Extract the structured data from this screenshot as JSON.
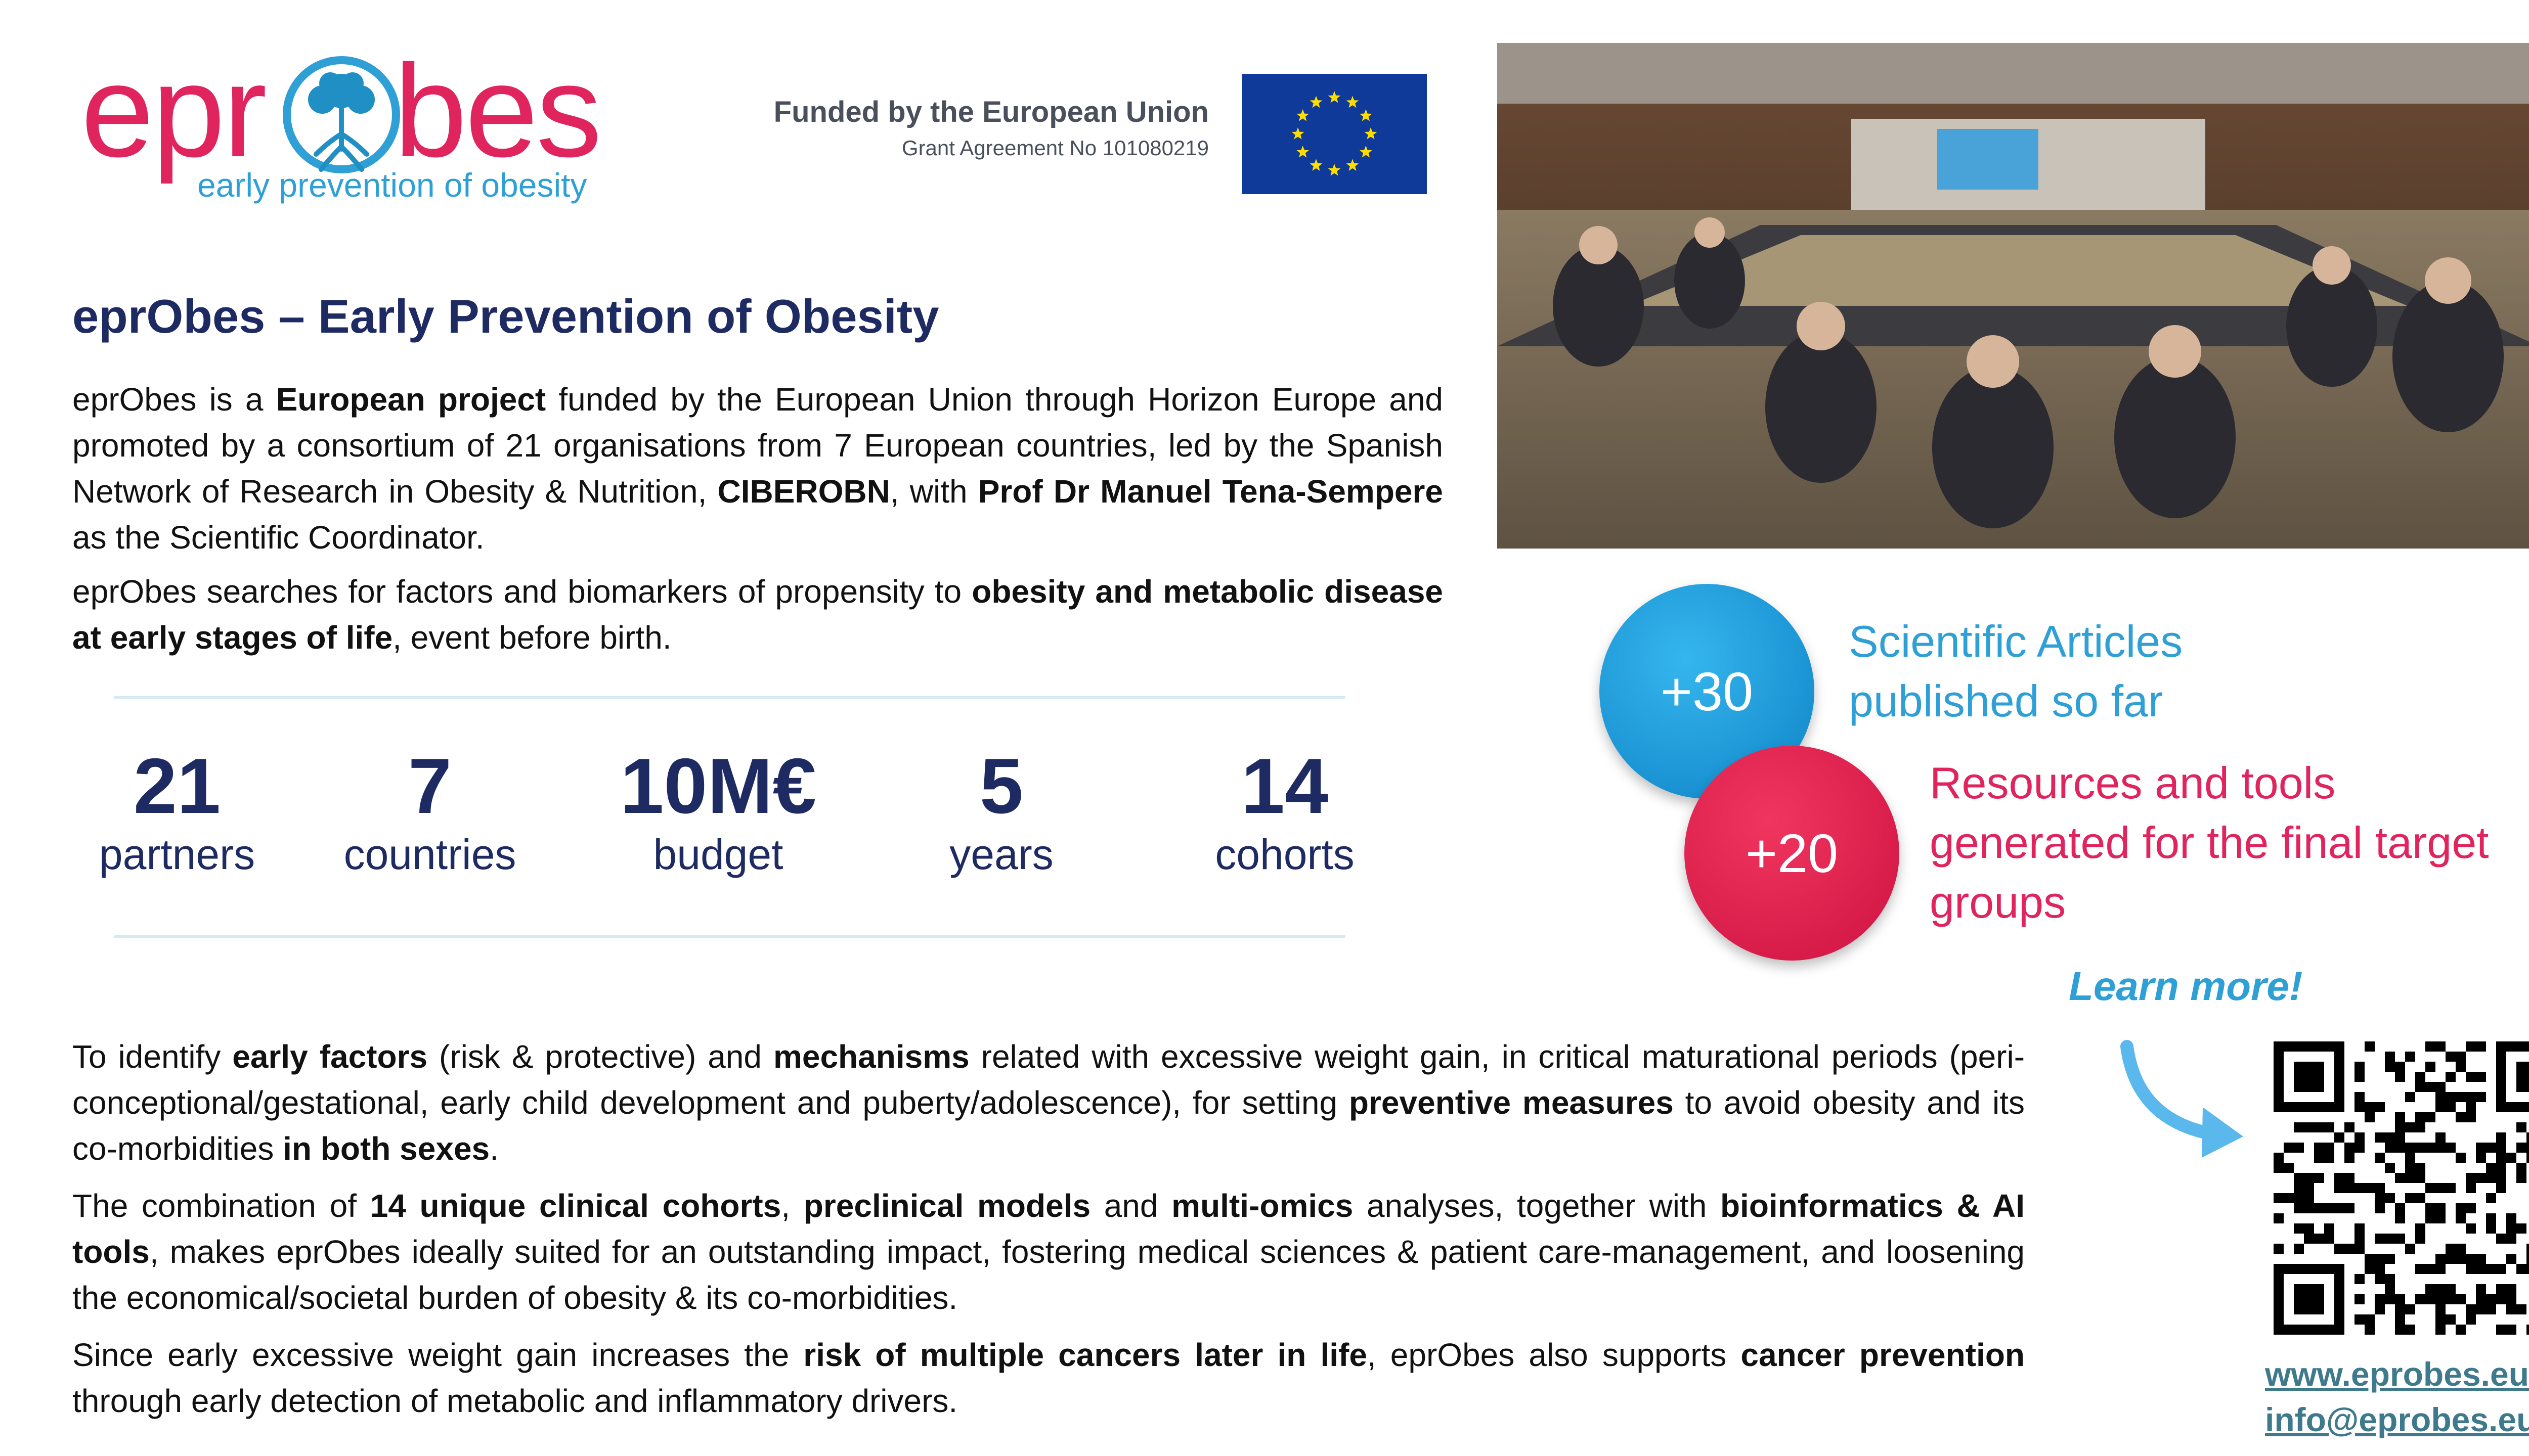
{
  "logo": {
    "wordmark_left": "epr",
    "wordmark_right": "bes",
    "tagline": "early prevention of obesity",
    "colors": {
      "primary": "#e0245e",
      "secondary": "#2ea0d6"
    }
  },
  "funding": {
    "title": "Funded by the European Union",
    "grant": "Grant Agreement No 101080219",
    "flag_icon": "eu-flag-icon"
  },
  "photo": {
    "alt_icon": "conference-photo"
  },
  "title": "eprObes – Early Prevention of Obesity",
  "intro": {
    "p1": [
      {
        "t": "eprObes is a ",
        "b": false
      },
      {
        "t": "European project",
        "b": true
      },
      {
        "t": " funded by the European Union through Horizon Europe and promoted by a consortium of 21 organisations from 7 European countries, led by the Spanish Network of Research in Obesity & Nutrition, ",
        "b": false
      },
      {
        "t": "CIBEROBN",
        "b": true
      },
      {
        "t": ", with ",
        "b": false
      },
      {
        "t": "Prof Dr Manuel Tena-Sempere",
        "b": true
      },
      {
        "t": " as the Scientific Coordinator.",
        "b": false
      }
    ],
    "p2": [
      {
        "t": "eprObes searches for factors and biomarkers of propensity to ",
        "b": false
      },
      {
        "t": "obesity and metabolic disease at early stages of life",
        "b": true
      },
      {
        "t": ", event before birth.",
        "b": false
      }
    ]
  },
  "stats": [
    {
      "value": "21",
      "label": "partners"
    },
    {
      "value": "7",
      "label": "countries"
    },
    {
      "value": "10M€",
      "label": "budget"
    },
    {
      "value": "5",
      "label": "years"
    },
    {
      "value": "14",
      "label": "cohorts"
    }
  ],
  "metrics": [
    {
      "value": "+30",
      "line1": "Scientific Articles",
      "line2": "published so far",
      "line3": "",
      "color": "#2ea0d6"
    },
    {
      "value": "+20",
      "line1": "Resources and tools",
      "line2": "generated for the final target",
      "line3": "groups",
      "color": "#e0245e"
    }
  ],
  "learn_more": "Learn more!",
  "lower": {
    "p1": [
      {
        "t": "To identify ",
        "b": false
      },
      {
        "t": "early factors",
        "b": true
      },
      {
        "t": " (risk & protective) and ",
        "b": false
      },
      {
        "t": "mechanisms",
        "b": true
      },
      {
        "t": " related with excessive weight gain, in critical maturational periods (peri-conceptional/gestational, early child development and puberty/adolescence), for setting ",
        "b": false
      },
      {
        "t": "preventive measures",
        "b": true
      },
      {
        "t": " to avoid obesity and its co-morbidities ",
        "b": false
      },
      {
        "t": "in both sexes",
        "b": true
      },
      {
        "t": ".",
        "b": false
      }
    ],
    "p2": [
      {
        "t": "The combination of ",
        "b": false
      },
      {
        "t": "14 unique clinical cohorts",
        "b": true
      },
      {
        "t": ", ",
        "b": false
      },
      {
        "t": "preclinical models",
        "b": true
      },
      {
        "t": " and ",
        "b": false
      },
      {
        "t": "multi-omics",
        "b": true
      },
      {
        "t": " analyses, together with ",
        "b": false
      },
      {
        "t": "bioinformatics & AI tools",
        "b": true
      },
      {
        "t": ", makes eprObes ideally suited for an outstanding impact, fostering medical sciences & patient care-management, and loosening the economical/societal burden of obesity & its co-morbidities.",
        "b": false
      }
    ],
    "p3": [
      {
        "t": "Since early excessive weight gain increases the ",
        "b": false
      },
      {
        "t": "risk of multiple cancers later in life",
        "b": true
      },
      {
        "t": ", eprObes also supports ",
        "b": false
      },
      {
        "t": "cancer prevention",
        "b": true
      },
      {
        "t": " through early detection of metabolic and inflammatory drivers.",
        "b": false
      }
    ]
  },
  "links": {
    "web": "www.eprobes.eu",
    "email": "info@eprobes.eu"
  }
}
